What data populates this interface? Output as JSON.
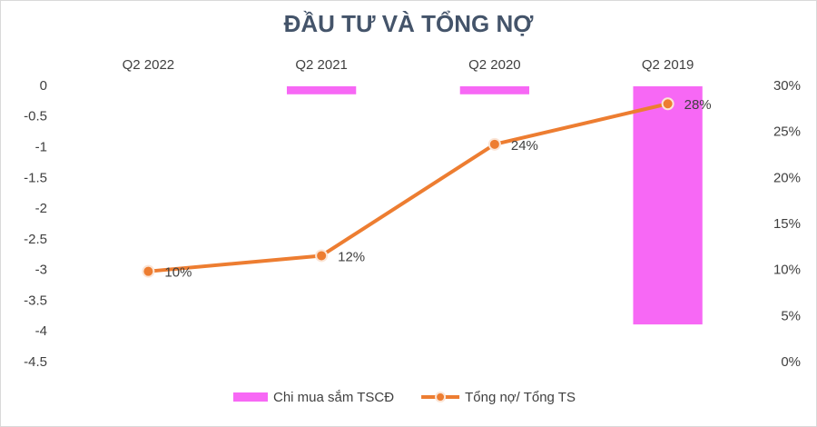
{
  "chart_data": {
    "type": "bar-line",
    "title": "ĐẦU TƯ VÀ TỔNG NỢ",
    "categories": [
      "Q2 2022",
      "Q2 2021",
      "Q2 2020",
      "Q2 2019"
    ],
    "series": [
      {
        "name": "Chi mua sắm TSCĐ",
        "type": "bar",
        "color": "#f768f5",
        "values": [
          0,
          -0.13,
          -0.13,
          -3.88
        ]
      },
      {
        "name": "Tổng nợ/ Tổng TS",
        "type": "line",
        "axis": "y2",
        "color": "#ed7d31",
        "values": [
          9.9,
          11.6,
          23.7,
          28.1
        ],
        "value_labels": [
          "10%",
          "12%",
          "24%",
          "28%"
        ]
      }
    ],
    "ylim": [
      -4.5,
      0
    ],
    "yticks": [
      0,
      -0.5,
      -1,
      -1.5,
      -2,
      -2.5,
      -3,
      -3.5,
      -4,
      -4.5
    ],
    "y2lim": [
      0,
      30
    ],
    "y2ticks": [
      {
        "value": 30,
        "label": "30%"
      },
      {
        "value": 25,
        "label": "25%"
      },
      {
        "value": 20,
        "label": "20%"
      },
      {
        "value": 15,
        "label": "15%"
      },
      {
        "value": 10,
        "label": "10%"
      },
      {
        "value": 5,
        "label": "5%"
      },
      {
        "value": 0,
        "label": "0%"
      }
    ],
    "grid": false,
    "legend": "bottom"
  }
}
